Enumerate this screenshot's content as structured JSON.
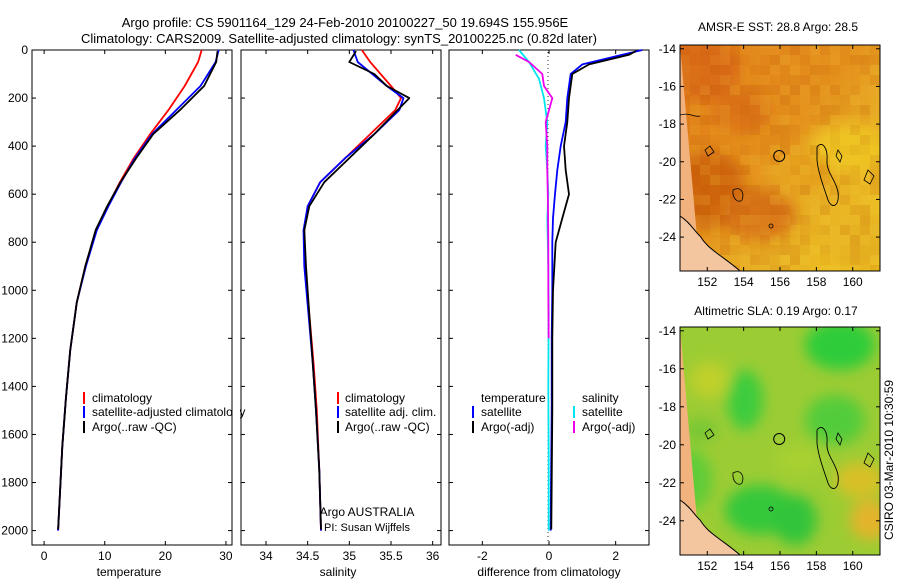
{
  "header": {
    "line1": "Argo profile: CS 5901164_129 24-Feb-2010 20100227_50 19.694S 155.956E",
    "line2": "Climatology: CARS2009. Satellite-adjusted climatology: synTS_20100225.nc (0.82d later)"
  },
  "side_label": "CSIRO 03-Mar-2010 10:30:59",
  "colors": {
    "clim": "#ff0000",
    "sat": "#0000ff",
    "argo": "#000000",
    "sat_diff": "#00e5ee",
    "argo_sal_diff": "#ee00ee"
  },
  "chart_data": [
    {
      "type": "line",
      "name": "temperature-panel",
      "xlabel": "temperature",
      "ylabel": "",
      "xlim": [
        -2,
        31
      ],
      "ylim": [
        2060,
        0
      ],
      "xticks": [
        0,
        10,
        20,
        30
      ],
      "xtick_labels": [
        "0",
        "10",
        "20",
        "30"
      ],
      "yticks": [
        0,
        200,
        400,
        600,
        800,
        1000,
        1200,
        1400,
        1600,
        1800,
        2000
      ],
      "ytick_labels": [
        "0",
        "200",
        "400",
        "600",
        "800",
        "1000",
        "1200",
        "1400",
        "1600",
        "1800",
        "2000"
      ],
      "legend": [
        "climatology",
        "satellite-adjusted climatology",
        "Argo(..raw -QC)"
      ],
      "series": [
        {
          "name": "climatology",
          "color": "#ff0000",
          "x": [
            26.0,
            25.4,
            23.2,
            20.5,
            17.5,
            14.8,
            12.5,
            10.5,
            8.6,
            6.8,
            5.4,
            4.3,
            3.6,
            3.0,
            2.6,
            2.3
          ],
          "y": [
            0,
            50,
            150,
            250,
            350,
            450,
            550,
            650,
            750,
            900,
            1050,
            1250,
            1450,
            1650,
            1850,
            2000
          ]
        },
        {
          "name": "satellite-adjusted climatology",
          "color": "#0000ff",
          "x": [
            28.8,
            28.3,
            25.8,
            21.8,
            17.8,
            15.0,
            12.7,
            10.6,
            8.7,
            6.9,
            5.4,
            4.3,
            3.6,
            3.0,
            2.6,
            2.3
          ],
          "y": [
            0,
            50,
            150,
            250,
            350,
            450,
            550,
            650,
            750,
            900,
            1050,
            1250,
            1450,
            1650,
            1850,
            2000
          ]
        },
        {
          "name": "Argo(..raw -QC)",
          "color": "#000000",
          "x": [
            28.6,
            28.4,
            26.4,
            22.4,
            18.0,
            15.2,
            12.6,
            10.4,
            8.5,
            6.8,
            5.4,
            4.3,
            3.6,
            3.0,
            2.6,
            2.3
          ],
          "y": [
            5,
            50,
            150,
            250,
            350,
            450,
            550,
            650,
            750,
            900,
            1050,
            1250,
            1450,
            1650,
            1850,
            1995
          ]
        }
      ]
    },
    {
      "type": "line",
      "name": "salinity-panel",
      "xlabel": "salinity",
      "xlim": [
        33.7,
        36.1
      ],
      "ylim": [
        2060,
        0
      ],
      "xticks": [
        34,
        34.5,
        35,
        35.5,
        36
      ],
      "xtick_labels": [
        "34",
        "34.5",
        "35",
        "35.5",
        "36"
      ],
      "legend": [
        "climatology",
        "satellite adj. clim.",
        "Argo(..raw -QC)"
      ],
      "annotation": [
        "Argo AUSTRALIA",
        "PI: Susan Wijffels"
      ],
      "series": [
        {
          "name": "climatology",
          "color": "#ff0000",
          "x": [
            35.15,
            35.25,
            35.5,
            35.62,
            35.55,
            35.25,
            34.95,
            34.65,
            34.5,
            34.46,
            34.47,
            34.52,
            34.57,
            34.61,
            34.64,
            34.66
          ],
          "y": [
            0,
            50,
            150,
            200,
            250,
            350,
            450,
            550,
            650,
            750,
            900,
            1100,
            1300,
            1500,
            1750,
            2000
          ]
        },
        {
          "name": "satellite adj. clim.",
          "color": "#0000ff",
          "x": [
            35.05,
            35.1,
            35.45,
            35.65,
            35.6,
            35.3,
            34.95,
            34.65,
            34.5,
            34.45,
            34.46,
            34.51,
            34.56,
            34.6,
            34.64,
            34.66
          ],
          "y": [
            0,
            50,
            150,
            200,
            250,
            350,
            450,
            550,
            650,
            750,
            900,
            1100,
            1300,
            1500,
            1750,
            2000
          ]
        },
        {
          "name": "Argo(..raw -QC)",
          "color": "#000000",
          "x": [
            35.08,
            35.0,
            35.3,
            35.45,
            35.72,
            35.55,
            35.3,
            35.0,
            34.7,
            34.52,
            34.46,
            34.48,
            34.52,
            34.56,
            34.6,
            34.64,
            34.66
          ],
          "y": [
            5,
            50,
            100,
            150,
            200,
            260,
            350,
            450,
            550,
            650,
            750,
            900,
            1100,
            1300,
            1500,
            1750,
            1995
          ]
        }
      ]
    },
    {
      "type": "line",
      "name": "difference-panel",
      "xlabel": "difference from climatology",
      "xlim": [
        -3,
        3
      ],
      "ylim": [
        2060,
        0
      ],
      "xticks": [
        -2,
        0,
        2
      ],
      "xtick_labels": [
        "-2",
        "0",
        "2"
      ],
      "legend_temperature": [
        "temperature",
        "satellite",
        "Argo(-adj)"
      ],
      "legend_salinity": [
        "salinity",
        "satellite",
        "Argo(-adj)"
      ],
      "series": [
        {
          "name": "temperature satellite",
          "color": "#0000ff",
          "x": [
            2.8,
            2.2,
            1.0,
            0.65,
            0.55,
            0.5,
            0.35,
            0.25,
            0.18,
            0.12,
            0.1,
            0.1,
            0.08,
            0.08,
            0.06,
            0.05
          ],
          "y": [
            0,
            20,
            60,
            100,
            200,
            300,
            400,
            500,
            600,
            700,
            800,
            1000,
            1200,
            1500,
            1800,
            2000
          ]
        },
        {
          "name": "temperature Argo(-adj)",
          "color": "#000000",
          "x": [
            2.6,
            2.4,
            1.2,
            0.7,
            0.6,
            0.55,
            0.45,
            0.5,
            0.6,
            0.4,
            0.2,
            0.12,
            0.1,
            0.1,
            0.08,
            0.07
          ],
          "y": [
            5,
            20,
            60,
            100,
            200,
            300,
            400,
            500,
            600,
            700,
            800,
            1000,
            1200,
            1500,
            1800,
            1995
          ]
        },
        {
          "name": "salinity satellite",
          "color": "#00e5ee",
          "x": [
            -0.9,
            -0.6,
            -0.3,
            -0.15,
            -0.05,
            -0.1,
            -0.05,
            -0.02,
            -0.05,
            -0.02,
            -0.01,
            -0.02,
            -0.01,
            -0.01
          ],
          "y": [
            0,
            50,
            120,
            200,
            300,
            400,
            500,
            600,
            700,
            900,
            1100,
            1400,
            1700,
            2000
          ]
        },
        {
          "name": "salinity Argo(-adj)",
          "color": "#ee00ee",
          "x": [
            -1.0,
            -0.6,
            -0.2,
            -0.15,
            0.1,
            -0.1,
            -0.05,
            -0.05,
            -0.03,
            -0.02,
            -0.02,
            -0.01
          ],
          "y": [
            20,
            50,
            100,
            150,
            200,
            300,
            400,
            500,
            650,
            800,
            1000,
            1200
          ]
        }
      ]
    },
    {
      "type": "heatmap",
      "name": "sst-map",
      "title": "AMSR-E SST: 28.8 Argo: 28.5",
      "xlim": [
        150.5,
        161.5
      ],
      "ylim": [
        -25.8,
        -13.8
      ],
      "xticks": [
        152,
        154,
        156,
        158,
        160
      ],
      "xtick_labels": [
        "152",
        "154",
        "156",
        "158",
        "160"
      ],
      "yticks": [
        -14,
        -16,
        -18,
        -20,
        -22,
        -24
      ],
      "ytick_labels": [
        "-14",
        "-16",
        "-18",
        "-20",
        "-22",
        "-24"
      ],
      "marker": {
        "lon": 155.956,
        "lat": -19.694
      }
    },
    {
      "type": "heatmap",
      "name": "sla-map",
      "title": "Altimetric SLA: 0.19 Argo: 0.17",
      "xlim": [
        150.5,
        161.5
      ],
      "ylim": [
        -25.8,
        -13.8
      ],
      "xticks": [
        152,
        154,
        156,
        158,
        160
      ],
      "xtick_labels": [
        "152",
        "154",
        "156",
        "158",
        "160"
      ],
      "yticks": [
        -14,
        -16,
        -18,
        -20,
        -22,
        -24
      ],
      "ytick_labels": [
        "-14",
        "-16",
        "-18",
        "-20",
        "-22",
        "-24"
      ],
      "marker": {
        "lon": 155.956,
        "lat": -19.694
      }
    }
  ]
}
